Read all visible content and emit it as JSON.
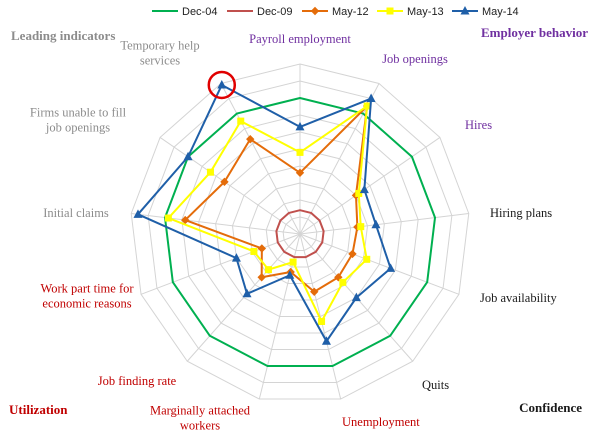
{
  "chart_data": {
    "type": "radar",
    "title": "",
    "corner_labels": {
      "top_left": {
        "text": "Leading indicators",
        "color": "#8c8c8c"
      },
      "top_right": {
        "text": "Employer behavior",
        "color": "#7030a0"
      },
      "bottom_left": {
        "text": "Utilization",
        "color": "#c00000"
      },
      "bottom_right": {
        "text": "Confidence",
        "color": "#1a1a1a"
      }
    },
    "axes": [
      {
        "label": "Payroll employment",
        "color": "#7030a0"
      },
      {
        "label": "Job openings",
        "color": "#7030a0"
      },
      {
        "label": "Hires",
        "color": "#7030a0"
      },
      {
        "label": "Hiring plans",
        "color": "#1a1a1a"
      },
      {
        "label": "Job availability",
        "color": "#1a1a1a"
      },
      {
        "label": "Quits",
        "color": "#1a1a1a"
      },
      {
        "label": "Unemployment",
        "color": "#c00000"
      },
      {
        "label": "Marginally attached workers",
        "color": "#c00000"
      },
      {
        "label": "Job finding rate",
        "color": "#c00000"
      },
      {
        "label": "Work part time for economic reasons",
        "color": "#c00000"
      },
      {
        "label": "Initial claims",
        "color": "#8c8c8c"
      },
      {
        "label": "Firms unable to fill job openings",
        "color": "#8c8c8c"
      },
      {
        "label": "Temporary help services",
        "color": "#8c8c8c"
      }
    ],
    "rings": 10,
    "rlim": [
      0,
      1
    ],
    "grid": true,
    "legend_position": "top",
    "series": [
      {
        "name": "Dec-04",
        "color": "#00b050",
        "marker": "none",
        "values": [
          0.8,
          0.8,
          0.8,
          0.8,
          0.8,
          0.8,
          0.8,
          0.8,
          0.8,
          0.8,
          0.8,
          0.8,
          0.8
        ]
      },
      {
        "name": "Dec-09",
        "color": "#c0504d",
        "marker": "none",
        "values": [
          0.14,
          0.14,
          0.14,
          0.14,
          0.14,
          0.14,
          0.14,
          0.14,
          0.14,
          0.14,
          0.14,
          0.14,
          0.14
        ]
      },
      {
        "name": "May-12",
        "color": "#e46c0a",
        "marker": "diamond",
        "values": [
          0.36,
          0.85,
          0.4,
          0.34,
          0.33,
          0.34,
          0.35,
          0.23,
          0.34,
          0.24,
          0.68,
          0.54,
          0.63
        ]
      },
      {
        "name": "May-13",
        "color": "#ffff00",
        "marker": "square",
        "values": [
          0.48,
          0.85,
          0.42,
          0.36,
          0.42,
          0.38,
          0.53,
          0.17,
          0.28,
          0.29,
          0.78,
          0.64,
          0.75
        ]
      },
      {
        "name": "May-14",
        "color": "#1f5fa8",
        "marker": "triangle",
        "values": [
          0.63,
          0.9,
          0.46,
          0.45,
          0.57,
          0.5,
          0.65,
          0.25,
          0.47,
          0.4,
          0.96,
          0.8,
          0.99
        ]
      }
    ],
    "highlight": {
      "axis": "Temporary help services",
      "shape": "circle",
      "color": "#e00000"
    }
  }
}
